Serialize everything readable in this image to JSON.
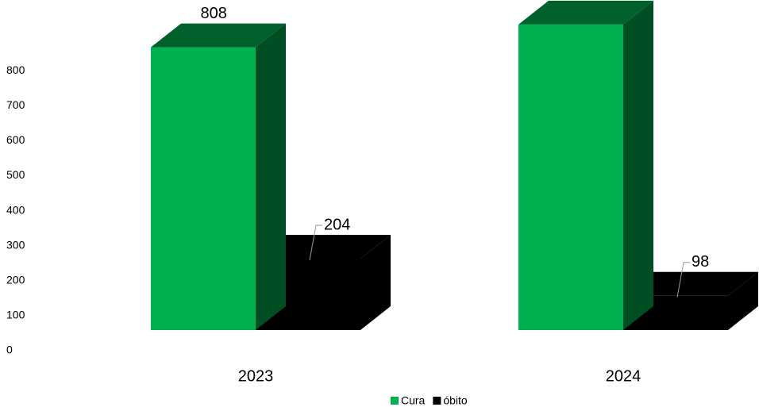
{
  "chart_data": {
    "type": "bar3d",
    "categories": [
      "2023",
      "2024"
    ],
    "series": [
      {
        "name": "Cura",
        "color": "#00b050",
        "values": [
          808,
          873
        ]
      },
      {
        "name": "óbito",
        "color": "#000000",
        "values": [
          204,
          98
        ]
      }
    ],
    "ylim": [
      0,
      900
    ],
    "yticks": [
      0,
      100,
      200,
      300,
      400,
      500,
      600,
      700,
      800
    ],
    "legend": "bottom"
  }
}
